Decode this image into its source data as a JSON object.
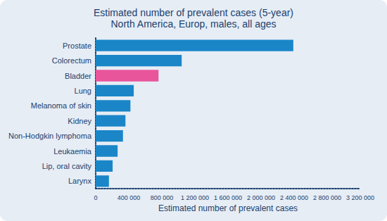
{
  "chart_data": {
    "type": "bar",
    "orientation": "horizontal",
    "title": "Estimated number of prevalent cases (5-year)",
    "subtitle": "North America, Europ, males, all ages",
    "x_label": "Estimated number of prevalent cases",
    "categories": [
      "Prostate",
      "Colorectum",
      "Bladder",
      "Lung",
      "Melanoma of skin",
      "Kidney",
      "Non-Hodgkin lymphoma",
      "Leukaemia",
      "Lip, oral cavity",
      "Larynx"
    ],
    "values": [
      2390000,
      1040000,
      760000,
      460000,
      420000,
      360000,
      330000,
      265000,
      205000,
      160000
    ],
    "colors": [
      "#1a86c8",
      "#1a86c8",
      "#e8559a",
      "#1a86c8",
      "#1a86c8",
      "#1a86c8",
      "#1a86c8",
      "#1a86c8",
      "#1a86c8",
      "#1a86c8"
    ],
    "xlim": [
      0,
      3200000
    ],
    "xticks": [
      0,
      {
        "value": 400000,
        "label": "400 000"
      },
      {
        "value": 800000,
        "label": "800 000"
      },
      {
        "value": 1200000,
        "label": "1 200 000"
      },
      {
        "value": 1600000,
        "label": "1 600 000"
      },
      {
        "value": 2000000,
        "label": "2 000 000"
      },
      {
        "value": 2400000,
        "label": "2 400 000"
      },
      {
        "value": 2800000,
        "label": "2 800 000"
      },
      {
        "value": 3200000,
        "label": "3 200 000"
      }
    ],
    "grid": false
  }
}
